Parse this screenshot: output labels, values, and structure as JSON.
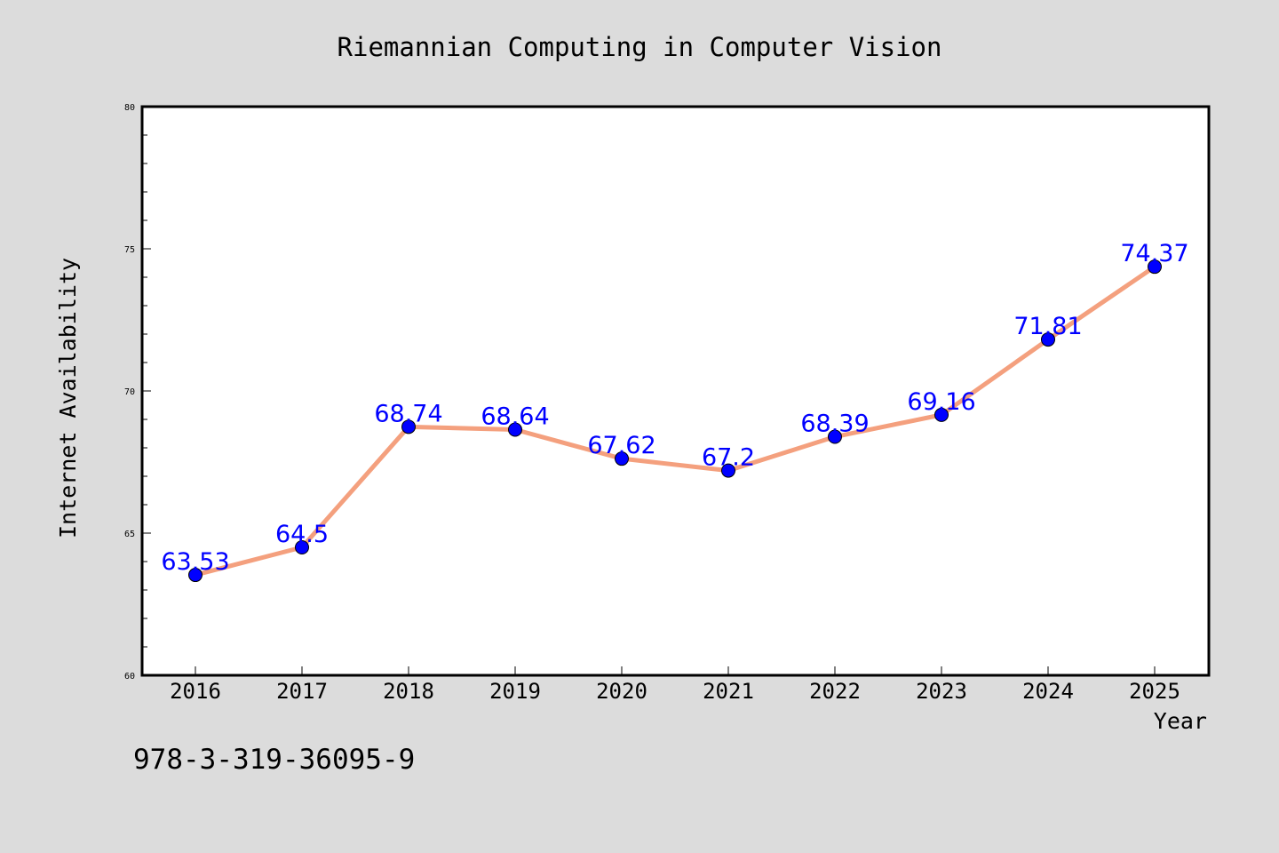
{
  "chart_data": {
    "type": "line",
    "title": "Riemannian Computing in Computer Vision",
    "xlabel": "Year",
    "ylabel": "Internet Availability",
    "categories": [
      "2016",
      "2017",
      "2018",
      "2019",
      "2020",
      "2021",
      "2022",
      "2023",
      "2024",
      "2025"
    ],
    "series": [
      {
        "values": [
          63.53,
          64.5,
          68.74,
          68.64,
          67.62,
          67.2,
          68.39,
          69.16,
          71.81,
          74.37
        ],
        "labels": [
          "63.53",
          "64.5",
          "68.74",
          "68.64",
          "67.62",
          "67.2",
          "68.39",
          "69.16",
          "71.81",
          "74.37"
        ],
        "line_color": "#f4a07e",
        "marker_color": "#0000ff"
      }
    ],
    "ylim": [
      60,
      80
    ],
    "yticks": [
      60,
      65,
      70,
      75,
      80
    ],
    "ytick_labels": [
      "60",
      "65",
      "70",
      "75",
      "80"
    ],
    "grid": false,
    "label_color": "#0000ff"
  },
  "footnote": "978-3-319-36095-9",
  "colors": {
    "background": "#dcdcdc",
    "plot_background": "#ffffff",
    "axis": "#000000"
  }
}
